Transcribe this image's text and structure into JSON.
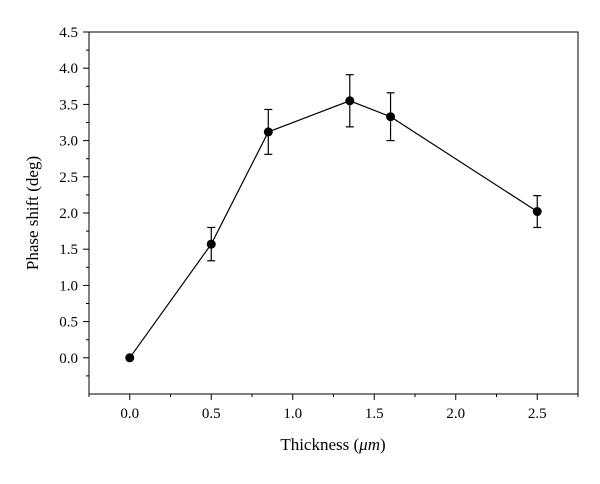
{
  "chart_data": {
    "type": "line",
    "title": "",
    "xlabel_main": "Thickness (",
    "xlabel_unit": "μm",
    "xlabel_close": ")",
    "ylabel": "Phase shift (deg)",
    "xlim": [
      -0.25,
      2.75
    ],
    "ylim": [
      -0.5,
      4.5
    ],
    "xticks": [
      "0.0",
      "0.5",
      "1.0",
      "1.5",
      "2.0",
      "2.5"
    ],
    "yticks": [
      "0.0",
      "0.5",
      "1.0",
      "1.5",
      "2.0",
      "2.5",
      "3.0",
      "3.5",
      "4.0",
      "4.5"
    ],
    "grid": false,
    "series": [
      {
        "x": [
          0.0,
          0.5,
          0.85,
          1.35,
          1.6,
          2.5
        ],
        "y": [
          0.0,
          1.57,
          3.12,
          3.55,
          3.33,
          2.02
        ],
        "yerr": [
          0.0,
          0.23,
          0.31,
          0.36,
          0.33,
          0.22
        ]
      }
    ]
  }
}
